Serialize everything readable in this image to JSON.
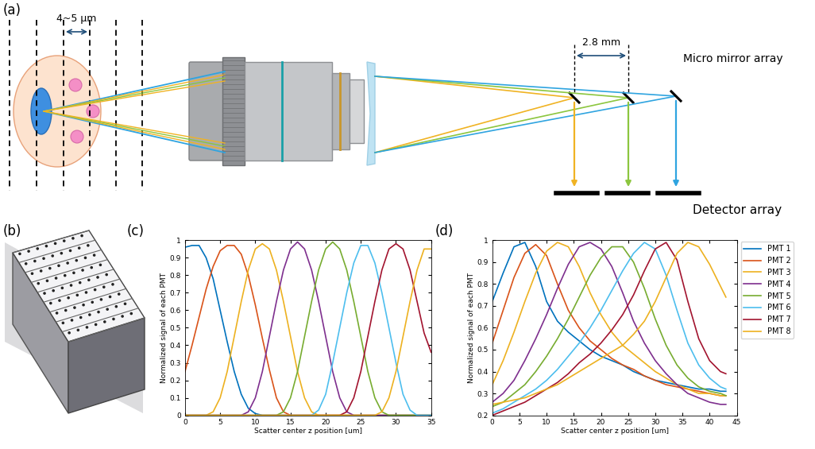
{
  "panels": {
    "a": {
      "label": "(a)",
      "spacing": "4~5 μm",
      "mirror_spacing": "2.8 mm",
      "mirror": "Micro mirror array",
      "detector": "Detector array"
    },
    "b": {
      "label": "(b)"
    },
    "c": {
      "label": "(c)"
    },
    "d": {
      "label": "(d)"
    }
  },
  "chart_data": [
    {
      "type": "line",
      "xlabel": "Scatter center z position [um]",
      "ylabel": "Normalized signal of each PMT",
      "xlim": [
        0,
        35
      ],
      "xticks": [
        0,
        5,
        10,
        15,
        20,
        25,
        30,
        35
      ],
      "ylim": [
        0,
        1
      ],
      "yticks": [
        0,
        0.1,
        0.2,
        0.3,
        0.4,
        0.5,
        0.6,
        0.7,
        0.8,
        0.9,
        1
      ],
      "x": [
        0,
        1,
        2,
        3,
        4,
        5,
        6,
        7,
        8,
        9,
        10,
        11,
        12,
        13,
        14,
        15,
        16,
        17,
        18,
        19,
        20,
        21,
        22,
        23,
        24,
        25,
        26,
        27,
        28,
        29,
        30,
        31,
        32,
        33,
        34,
        35
      ],
      "series": [
        {
          "color": "#0072BD",
          "values": [
            0.96,
            0.97,
            0.97,
            0.9,
            0.78,
            0.6,
            0.42,
            0.25,
            0.12,
            0.04,
            0.01,
            0,
            0,
            0,
            0,
            0,
            0,
            0,
            0,
            0,
            0,
            0,
            0,
            0,
            0,
            0,
            0,
            0,
            0,
            0,
            0,
            0,
            0,
            0,
            0,
            0
          ]
        },
        {
          "color": "#D95319",
          "values": [
            0.25,
            0.4,
            0.56,
            0.72,
            0.85,
            0.94,
            0.97,
            0.97,
            0.92,
            0.8,
            0.63,
            0.44,
            0.26,
            0.1,
            0.02,
            0,
            0,
            0,
            0,
            0,
            0,
            0,
            0,
            0,
            0,
            0,
            0,
            0,
            0,
            0,
            0,
            0,
            0,
            0,
            0,
            0
          ]
        },
        {
          "color": "#EDB120",
          "values": [
            0,
            0,
            0,
            0,
            0.02,
            0.1,
            0.25,
            0.45,
            0.65,
            0.83,
            0.95,
            0.98,
            0.95,
            0.83,
            0.65,
            0.45,
            0.25,
            0.1,
            0.02,
            0,
            0,
            0,
            0,
            0,
            0,
            0,
            0,
            0,
            0,
            0,
            0,
            0,
            0,
            0,
            0,
            0
          ]
        },
        {
          "color": "#7E2F8E",
          "values": [
            0,
            0,
            0,
            0,
            0,
            0,
            0,
            0,
            0,
            0.02,
            0.1,
            0.25,
            0.45,
            0.65,
            0.83,
            0.95,
            0.99,
            0.95,
            0.83,
            0.65,
            0.45,
            0.25,
            0.1,
            0.02,
            0,
            0,
            0,
            0,
            0,
            0,
            0,
            0,
            0,
            0,
            0,
            0
          ]
        },
        {
          "color": "#77AC30",
          "values": [
            0,
            0,
            0,
            0,
            0,
            0,
            0,
            0,
            0,
            0,
            0,
            0,
            0,
            0,
            0.02,
            0.1,
            0.25,
            0.45,
            0.65,
            0.83,
            0.95,
            0.99,
            0.95,
            0.83,
            0.65,
            0.45,
            0.25,
            0.1,
            0.02,
            0,
            0,
            0,
            0,
            0,
            0,
            0
          ]
        },
        {
          "color": "#4DBEEE",
          "values": [
            0,
            0,
            0,
            0,
            0,
            0,
            0,
            0,
            0,
            0,
            0,
            0,
            0,
            0,
            0,
            0,
            0,
            0,
            0,
            0.03,
            0.12,
            0.3,
            0.5,
            0.7,
            0.87,
            0.97,
            0.97,
            0.87,
            0.7,
            0.5,
            0.3,
            0.12,
            0.03,
            0,
            0,
            0
          ]
        },
        {
          "color": "#A2142F",
          "values": [
            0,
            0,
            0,
            0,
            0,
            0,
            0,
            0,
            0,
            0,
            0,
            0,
            0,
            0,
            0,
            0,
            0,
            0,
            0,
            0,
            0,
            0,
            0,
            0.02,
            0.1,
            0.25,
            0.45,
            0.65,
            0.83,
            0.95,
            0.98,
            0.95,
            0.83,
            0.65,
            0.47,
            0.36
          ]
        },
        {
          "color": "#EDB120",
          "values": [
            0,
            0,
            0,
            0,
            0,
            0,
            0,
            0,
            0,
            0,
            0,
            0,
            0,
            0,
            0,
            0,
            0,
            0,
            0,
            0,
            0,
            0,
            0,
            0,
            0,
            0,
            0,
            0,
            0.02,
            0.1,
            0.25,
            0.45,
            0.65,
            0.83,
            0.95,
            0.95
          ]
        }
      ]
    },
    {
      "type": "line",
      "xlabel": "Scatter center z position [um]",
      "ylabel": "Normalized signal of each PMT",
      "xlim": [
        0,
        45
      ],
      "xticks": [
        0,
        5,
        10,
        15,
        20,
        25,
        30,
        35,
        40,
        45
      ],
      "ylim": [
        0.2,
        1
      ],
      "yticks": [
        0.2,
        0.3,
        0.4,
        0.5,
        0.6,
        0.7,
        0.8,
        0.9,
        1
      ],
      "legend": "upper left",
      "x": [
        0,
        2,
        4,
        6,
        8,
        10,
        12,
        14,
        16,
        18,
        20,
        22,
        24,
        26,
        28,
        30,
        32,
        34,
        36,
        38,
        40,
        42,
        43
      ],
      "series": [
        {
          "name": "PMT 1",
          "color": "#0072BD",
          "values": [
            0.72,
            0.85,
            0.97,
            0.99,
            0.88,
            0.72,
            0.63,
            0.58,
            0.54,
            0.5,
            0.47,
            0.45,
            0.43,
            0.4,
            0.38,
            0.36,
            0.35,
            0.34,
            0.33,
            0.32,
            0.32,
            0.31,
            0.31
          ]
        },
        {
          "name": "PMT 2",
          "color": "#D95319",
          "values": [
            0.53,
            0.68,
            0.83,
            0.94,
            0.98,
            0.93,
            0.8,
            0.68,
            0.6,
            0.54,
            0.5,
            0.46,
            0.43,
            0.41,
            0.38,
            0.36,
            0.34,
            0.33,
            0.32,
            0.31,
            0.3,
            0.29,
            0.29
          ]
        },
        {
          "name": "PMT 3",
          "color": "#EDB120",
          "values": [
            0.34,
            0.45,
            0.58,
            0.72,
            0.85,
            0.95,
            0.99,
            0.97,
            0.88,
            0.76,
            0.66,
            0.58,
            0.52,
            0.48,
            0.44,
            0.4,
            0.37,
            0.34,
            0.32,
            0.3,
            0.3,
            0.29,
            0.29
          ]
        },
        {
          "name": "PMT 4",
          "color": "#7E2F8E",
          "values": [
            0.26,
            0.3,
            0.36,
            0.45,
            0.55,
            0.66,
            0.78,
            0.89,
            0.97,
            0.99,
            0.96,
            0.88,
            0.76,
            0.63,
            0.53,
            0.45,
            0.39,
            0.34,
            0.3,
            0.28,
            0.26,
            0.25,
            0.25
          ]
        },
        {
          "name": "PMT 5",
          "color": "#77AC30",
          "values": [
            0.24,
            0.26,
            0.3,
            0.34,
            0.4,
            0.47,
            0.55,
            0.64,
            0.74,
            0.84,
            0.92,
            0.97,
            0.97,
            0.9,
            0.78,
            0.64,
            0.52,
            0.43,
            0.37,
            0.33,
            0.31,
            0.3,
            0.29
          ]
        },
        {
          "name": "PMT 6",
          "color": "#4DBEEE",
          "values": [
            0.21,
            0.23,
            0.26,
            0.29,
            0.32,
            0.36,
            0.41,
            0.47,
            0.53,
            0.6,
            0.68,
            0.77,
            0.86,
            0.94,
            0.99,
            0.96,
            0.84,
            0.68,
            0.53,
            0.43,
            0.37,
            0.33,
            0.32
          ]
        },
        {
          "name": "PMT 7",
          "color": "#A2142F",
          "values": [
            0.2,
            0.22,
            0.24,
            0.26,
            0.29,
            0.32,
            0.35,
            0.39,
            0.44,
            0.48,
            0.53,
            0.59,
            0.66,
            0.75,
            0.86,
            0.96,
            0.99,
            0.91,
            0.72,
            0.55,
            0.45,
            0.4,
            0.39
          ]
        },
        {
          "name": "PMT 8",
          "color": "#EDB120",
          "values": [
            0.25,
            0.26,
            0.27,
            0.28,
            0.3,
            0.32,
            0.34,
            0.37,
            0.4,
            0.43,
            0.46,
            0.49,
            0.52,
            0.57,
            0.63,
            0.72,
            0.83,
            0.94,
            0.99,
            0.97,
            0.89,
            0.79,
            0.74
          ]
        }
      ]
    }
  ]
}
